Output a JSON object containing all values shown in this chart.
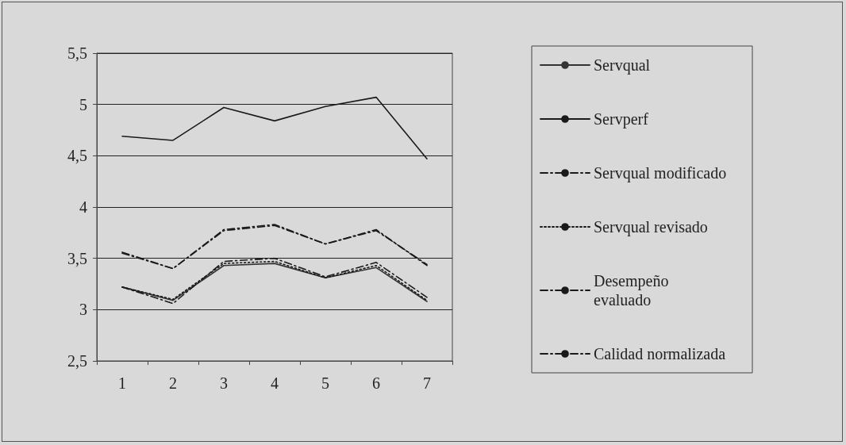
{
  "chart_data": {
    "type": "line",
    "categories": [
      "1",
      "2",
      "3",
      "4",
      "5",
      "6",
      "7"
    ],
    "series": [
      {
        "name": "Servqual",
        "color": "#333333",
        "line_style": "solid",
        "values": [
          3.22,
          3.09,
          3.43,
          3.45,
          3.31,
          3.41,
          3.08
        ]
      },
      {
        "name": "Servperf",
        "color": "#1a1a1a",
        "line_style": "solid",
        "values": [
          4.69,
          4.65,
          4.97,
          4.84,
          4.98,
          5.07,
          4.47
        ]
      },
      {
        "name": "Servqual modificado",
        "color": "#1a1a1a",
        "line_style": "dashed",
        "values": [
          3.56,
          3.4,
          3.77,
          3.82,
          3.64,
          3.77,
          3.44
        ]
      },
      {
        "name": "Servqual revisado",
        "color": "#1a1a1a",
        "line_style": "dotted",
        "values": [
          3.22,
          3.1,
          3.45,
          3.47,
          3.31,
          3.43,
          3.09
        ]
      },
      {
        "name": "Desempeño evaluado",
        "color": "#1a1a1a",
        "line_style": "dashed",
        "values": [
          3.55,
          3.4,
          3.78,
          3.83,
          3.64,
          3.78,
          3.43
        ]
      },
      {
        "name": "Calidad normalizada",
        "color": "#1a1a1a",
        "line_style": "dashed",
        "values": [
          3.22,
          3.06,
          3.47,
          3.5,
          3.32,
          3.46,
          3.12
        ]
      }
    ],
    "ylim": [
      2.5,
      5.5
    ],
    "yticks": [
      {
        "value": 2.5,
        "label": "2,5"
      },
      3,
      {
        "value": 3.5,
        "label": "3,5"
      },
      4,
      {
        "value": 4.5,
        "label": "4,5"
      },
      5,
      {
        "value": 5.5,
        "label": "5,5"
      }
    ],
    "grid": "y",
    "legend": "right",
    "marker": "none"
  }
}
